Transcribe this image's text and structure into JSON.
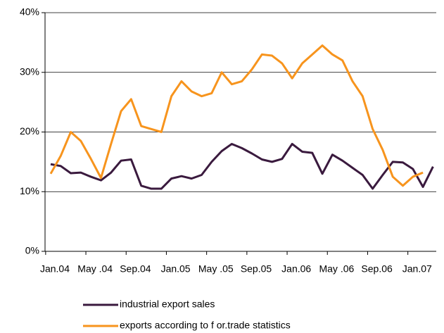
{
  "chart_data": {
    "type": "line",
    "categories": [
      "Jan.04",
      null,
      null,
      null,
      "May .04",
      null,
      null,
      null,
      "Sep.04",
      null,
      null,
      null,
      "Jan.05",
      null,
      null,
      null,
      "May .05",
      null,
      null,
      null,
      "Sep.05",
      null,
      null,
      null,
      "Jan.06",
      null,
      null,
      null,
      "May .06",
      null,
      null,
      null,
      "Sep.06",
      null,
      null,
      null,
      "Jan.07",
      null,
      null
    ],
    "series": [
      {
        "name": "industrial export sales",
        "color": "#3a1a3e",
        "values": [
          14.6,
          14.3,
          13.1,
          13.2,
          12.5,
          11.9,
          13.2,
          15.2,
          15.4,
          11.0,
          10.5,
          10.5,
          12.2,
          12.6,
          12.2,
          12.8,
          15.0,
          16.8,
          18.0,
          17.3,
          16.4,
          15.4,
          15.0,
          15.5,
          18.0,
          16.7,
          16.5,
          13.0,
          16.2,
          15.2,
          14.0,
          12.8,
          10.5,
          12.8,
          15.0,
          14.9,
          13.8,
          10.8,
          14.2
        ]
      },
      {
        "name": "exports according to f or.trade statistics",
        "color": "#f7941d",
        "values": [
          13.0,
          16.0,
          20.0,
          18.5,
          15.5,
          12.3,
          18.0,
          23.5,
          25.5,
          21.0,
          20.5,
          20.0,
          26.0,
          28.5,
          26.8,
          26.0,
          26.5,
          30.0,
          28.0,
          28.5,
          30.5,
          33.0,
          32.8,
          31.5,
          29.0,
          31.5,
          33.0,
          34.5,
          33.0,
          32.0,
          28.5,
          26.0,
          20.5,
          17.0,
          12.5,
          11.0,
          12.5,
          13.2,
          null
        ]
      }
    ],
    "ylim": [
      0,
      40
    ],
    "yticks": [
      {
        "value": 0,
        "label": "0%"
      },
      {
        "value": 10,
        "label": "10%"
      },
      {
        "value": 20,
        "label": "20%"
      },
      {
        "value": 30,
        "label": "30%"
      },
      {
        "value": 40,
        "label": "40%"
      }
    ],
    "grid": true
  }
}
